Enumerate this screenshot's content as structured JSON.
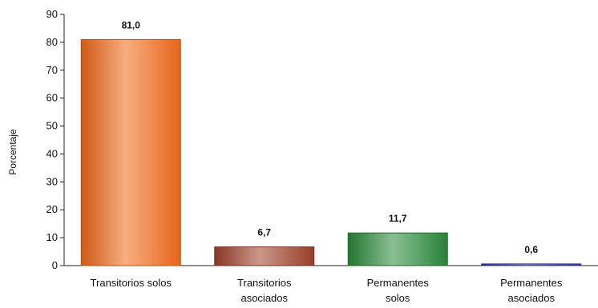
{
  "chart_data": {
    "type": "bar",
    "ylabel": "Porcentaje",
    "ylim": [
      0,
      90
    ],
    "yticks": [
      0,
      10,
      20,
      30,
      40,
      50,
      60,
      70,
      80,
      90
    ],
    "grid": false,
    "categories": [
      [
        "Transitorios solos"
      ],
      [
        "Transitorios",
        "asociados"
      ],
      [
        "Permanentes",
        "solos"
      ],
      [
        "Permanentes",
        "asociados"
      ]
    ],
    "values": [
      81.0,
      6.7,
      11.7,
      0.6
    ],
    "value_labels": [
      "81,0",
      "6,7",
      "11,7",
      "0,6"
    ],
    "colors": [
      "#f26a1b",
      "#a0412a",
      "#2a8a3a",
      "#3a3aa8"
    ]
  }
}
